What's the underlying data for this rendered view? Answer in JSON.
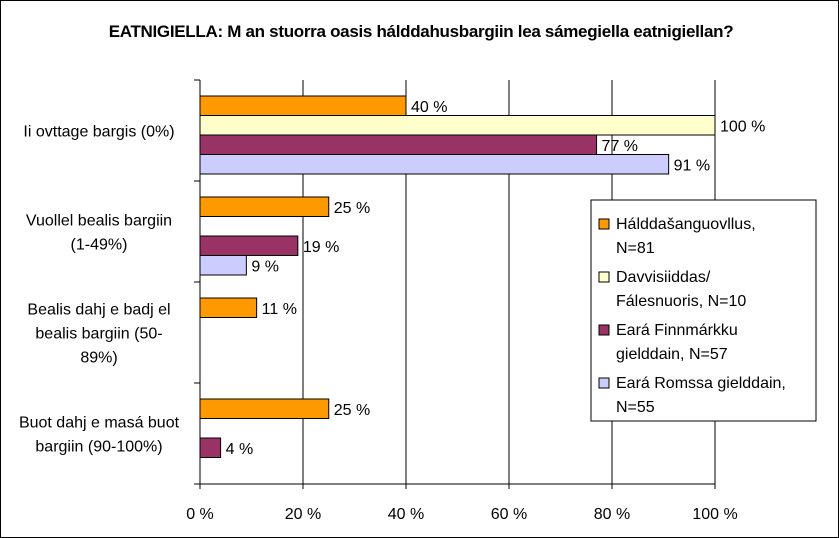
{
  "chart_data": {
    "type": "bar",
    "orientation": "horizontal",
    "title": "EATNIGIELLA: M an stuorra oasis hálddahusbargiin lea sámegiella eatnigiellan?",
    "categories": [
      [
        "Ii ovttage bargis (0%)"
      ],
      [
        "Vuollel bealis bargiin",
        "(1-49%)"
      ],
      [
        "Bealis dahj e badj el",
        "bealis bargiin (50-",
        "89%)"
      ],
      [
        "Buot dahj e masá buot",
        "bargiin (90-100%)"
      ]
    ],
    "series": [
      {
        "name": [
          "Hálddašanguovllus,",
          "N=81"
        ],
        "color": "#FF9900",
        "values": [
          40,
          25,
          11,
          25
        ]
      },
      {
        "name": [
          "Davvisiiddas/",
          "Fálesnuoris, N=10"
        ],
        "color": "#FFFFCC",
        "values": [
          100,
          null,
          null,
          null
        ]
      },
      {
        "name": [
          "Eará Finnmárkku",
          "gielddain, N=57"
        ],
        "color": "#993366",
        "values": [
          77,
          19,
          null,
          4
        ]
      },
      {
        "name": [
          "Eará Romssa gielddain,",
          "N=55"
        ],
        "color": "#CCCCFF",
        "values": [
          91,
          9,
          null,
          null
        ]
      }
    ],
    "value_suffix": " %",
    "xlim": [
      0,
      100
    ],
    "xticks": [
      0,
      20,
      40,
      60,
      80,
      100
    ],
    "xtick_labels": [
      "0 %",
      "20 %",
      "40 %",
      "60 %",
      "80 %",
      "100 %"
    ],
    "grid": true,
    "legend_position": "right"
  }
}
